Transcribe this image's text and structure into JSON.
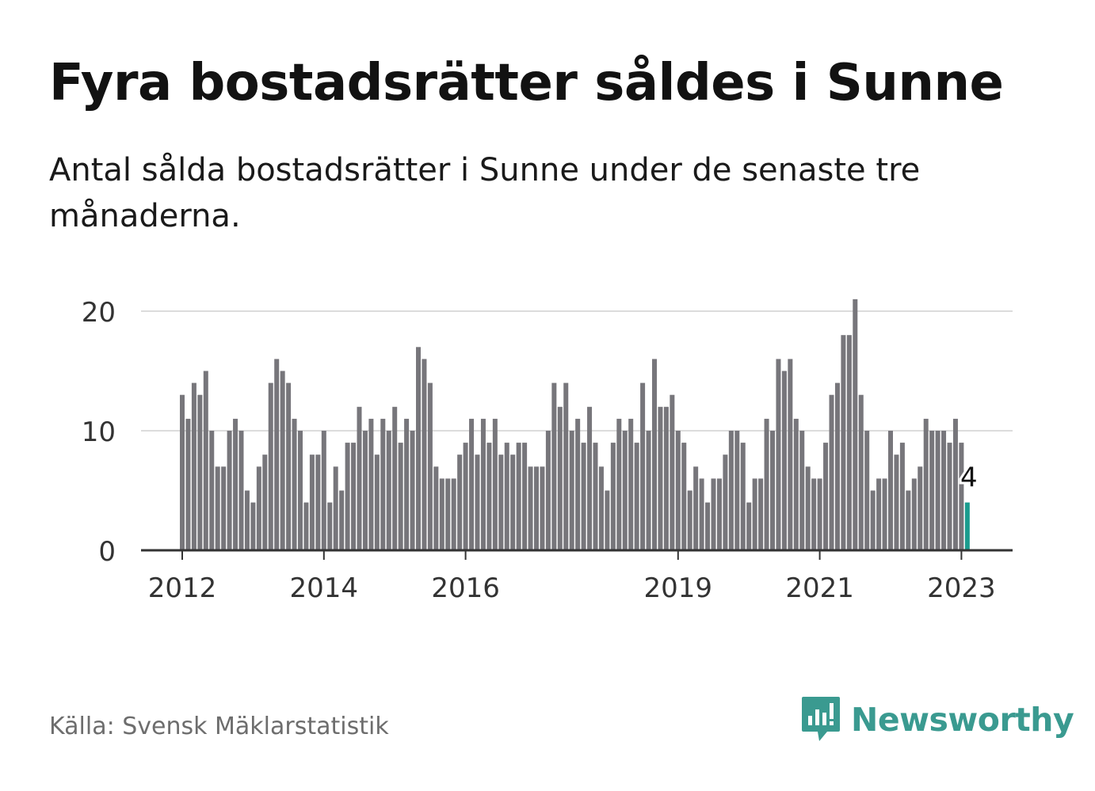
{
  "title": "Fyra bostadsrätter såldes i Sunne",
  "subtitle": "Antal sålda bostadsrätter i Sunne under de senaste tre månaderna.",
  "source": "Källa: Svensk Mäklarstatistik",
  "brand": {
    "name": "Newsworthy",
    "icon": "newsworthy-logo-icon",
    "color": "#3a9a90"
  },
  "chart_data": {
    "type": "bar",
    "start": "2012-01",
    "frequency": "monthly",
    "values": [
      13,
      11,
      14,
      13,
      15,
      10,
      7,
      7,
      10,
      11,
      10,
      5,
      4,
      7,
      8,
      14,
      16,
      15,
      14,
      11,
      10,
      4,
      8,
      8,
      10,
      4,
      7,
      5,
      9,
      9,
      12,
      10,
      11,
      8,
      11,
      10,
      12,
      9,
      11,
      10,
      17,
      16,
      14,
      7,
      6,
      6,
      6,
      8,
      9,
      11,
      8,
      11,
      9,
      11,
      8,
      9,
      8,
      9,
      9,
      7,
      7,
      7,
      10,
      14,
      12,
      14,
      10,
      11,
      9,
      12,
      9,
      7,
      5,
      9,
      11,
      10,
      11,
      9,
      14,
      10,
      16,
      12,
      12,
      13,
      10,
      9,
      5,
      7,
      6,
      4,
      6,
      6,
      8,
      10,
      10,
      9,
      4,
      6,
      6,
      11,
      10,
      16,
      15,
      16,
      11,
      10,
      7,
      6,
      6,
      9,
      13,
      14,
      18,
      18,
      21,
      13,
      10,
      5,
      6,
      6,
      10,
      8,
      9,
      5,
      6,
      7,
      11,
      10,
      10,
      10,
      9,
      11,
      9,
      4
    ],
    "y_ticks": [
      0,
      10,
      20
    ],
    "ylim": [
      0,
      21
    ],
    "x_ticks": [
      "2012",
      "2014",
      "2016",
      "2019",
      "2021",
      "2023"
    ],
    "highlight_label": "4",
    "bar_color": "#77767b",
    "highlight_color": "#1b9c8e",
    "grid": true
  }
}
